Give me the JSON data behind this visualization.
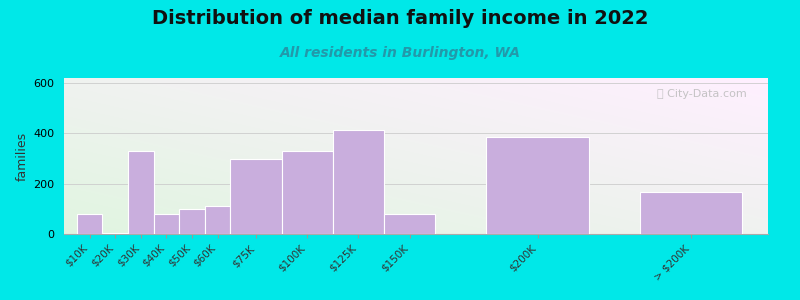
{
  "title": "Distribution of median family income in 2022",
  "subtitle": "All residents in Burlington, WA",
  "categories": [
    "$10K",
    "$20K",
    "$30K",
    "$40K",
    "$50K",
    "$60K",
    "$75K",
    "$100K",
    "$125K",
    "$150K",
    "$200K",
    "> $200K"
  ],
  "values": [
    80,
    5,
    330,
    80,
    100,
    110,
    300,
    330,
    415,
    80,
    385,
    165
  ],
  "bar_color": "#c9aedd",
  "bar_edge_color": "#ffffff",
  "background_color": "#00e8e8",
  "ylabel": "families",
  "ylim": [
    0,
    620
  ],
  "yticks": [
    0,
    200,
    400,
    600
  ],
  "title_fontsize": 14,
  "subtitle_fontsize": 10,
  "watermark_text": "ⓘ City-Data.com",
  "grid_color": "#cccccc",
  "bar_positions": [
    0,
    1,
    2,
    3,
    4,
    5,
    6,
    8,
    10,
    12,
    16,
    22
  ],
  "bar_widths": [
    1,
    1,
    1,
    1,
    1,
    1,
    2,
    2,
    2,
    2,
    4,
    4
  ],
  "xlabel_rotation": 45
}
